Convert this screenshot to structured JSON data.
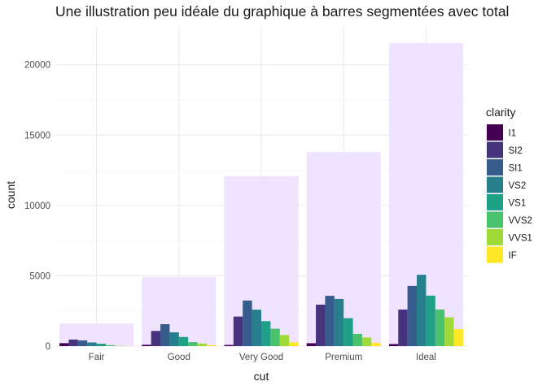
{
  "chart_data": {
    "type": "bar",
    "title": "Une illustration peu idéale du graphique à barres segmentées avec total",
    "xlabel": "cut",
    "ylabel": "count",
    "ylim": [
      0,
      22700
    ],
    "yticks": [
      0,
      5000,
      10000,
      15000,
      20000
    ],
    "ytick_labels": [
      "0",
      "5000",
      "10000",
      "15000",
      "20000"
    ],
    "grid": true,
    "legend_position": "right",
    "categories": [
      "Fair",
      "Good",
      "Very Good",
      "Premium",
      "Ideal"
    ],
    "totals": {
      "values": [
        1610,
        4906,
        12082,
        13791,
        21551
      ],
      "color": "#f0e3ff"
    },
    "legend_title": "clarity",
    "series": [
      {
        "name": "I1",
        "color": "#440154",
        "values": [
          210,
          96,
          84,
          205,
          146
        ]
      },
      {
        "name": "SI2",
        "color": "#46337e",
        "values": [
          466,
          1081,
          2100,
          2949,
          2598
        ]
      },
      {
        "name": "SI1",
        "color": "#365c8d",
        "values": [
          408,
          1560,
          3240,
          3575,
          4282
        ]
      },
      {
        "name": "VS2",
        "color": "#277f8e",
        "values": [
          261,
          978,
          2591,
          3357,
          5071
        ]
      },
      {
        "name": "VS1",
        "color": "#1fa187",
        "values": [
          170,
          648,
          1775,
          1989,
          3589
        ]
      },
      {
        "name": "VVS2",
        "color": "#4ac16d",
        "values": [
          69,
          286,
          1235,
          870,
          2606
        ]
      },
      {
        "name": "VVS1",
        "color": "#a0da39",
        "values": [
          17,
          186,
          789,
          616,
          2047
        ]
      },
      {
        "name": "IF",
        "color": "#fde725",
        "values": [
          9,
          71,
          268,
          230,
          1212
        ]
      }
    ]
  }
}
